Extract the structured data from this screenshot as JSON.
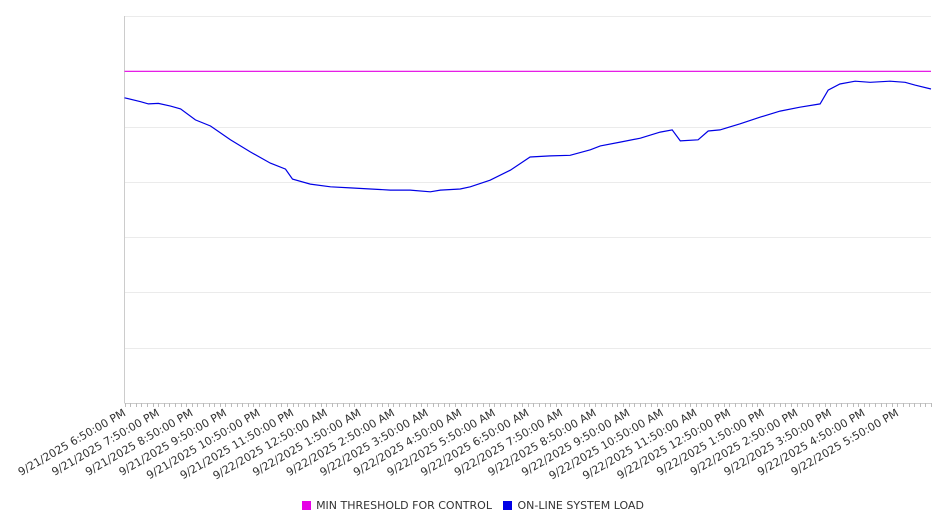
{
  "chart_data": {
    "type": "line",
    "title": "",
    "xlabel": "",
    "ylabel": "",
    "x_unit": "hours since 9/21/2025 6:50:00 PM",
    "xlim": [
      0,
      24
    ],
    "ylim": [
      0,
      7
    ],
    "y_gridlines": [
      0,
      1,
      2,
      3,
      4,
      5,
      6,
      7
    ],
    "y_tick_labels_shown": false,
    "grid": true,
    "legend_position": "bottom",
    "x_tick_labels": [
      "9/21/2025 6:50:00 PM",
      "9/21/2025 7:50:00 PM",
      "9/21/2025 8:50:00 PM",
      "9/21/2025 9:50:00 PM",
      "9/21/2025 10:50:00 PM",
      "9/21/2025 11:50:00 PM",
      "9/22/2025 12:50:00 AM",
      "9/22/2025 1:50:00 AM",
      "9/22/2025 2:50:00 AM",
      "9/22/2025 3:50:00 AM",
      "9/22/2025 4:50:00 AM",
      "9/22/2025 5:50:00 AM",
      "9/22/2025 6:50:00 AM",
      "9/22/2025 7:50:00 AM",
      "9/22/2025 8:50:00 AM",
      "9/22/2025 9:50:00 AM",
      "9/22/2025 10:50:00 AM",
      "9/22/2025 11:50:00 AM",
      "9/22/2025 12:50:00 PM",
      "9/22/2025 1:50:00 PM",
      "9/22/2025 2:50:00 PM",
      "9/22/2025 3:50:00 PM",
      "9/22/2025 4:50:00 PM",
      "9/22/2025 5:50:00 PM"
    ],
    "series": [
      {
        "name": "MIN THRESHOLD FOR CONTROL",
        "color": "#e600e6",
        "x": [
          0,
          24
        ],
        "values": [
          6.0,
          6.0
        ]
      },
      {
        "name": "ON-LINE SYSTEM LOAD",
        "color": "#0000e6",
        "x": [
          0,
          0.48,
          0.71,
          1.01,
          1.37,
          1.67,
          2.11,
          2.56,
          3.15,
          3.75,
          4.34,
          4.79,
          5.0,
          5.53,
          6.13,
          6.72,
          7.32,
          7.91,
          8.5,
          9.1,
          9.4,
          9.99,
          10.29,
          10.88,
          11.48,
          12.07,
          12.67,
          13.26,
          13.86,
          14.16,
          14.75,
          15.35,
          15.94,
          16.3,
          16.54,
          17.07,
          17.37,
          17.72,
          18.32,
          18.91,
          19.51,
          20.1,
          20.7,
          20.94,
          21.29,
          21.74,
          22.19,
          22.78,
          23.23,
          23.52,
          24
        ],
        "values": [
          5.52,
          5.45,
          5.41,
          5.42,
          5.37,
          5.32,
          5.12,
          5.01,
          4.76,
          4.54,
          4.34,
          4.23,
          4.05,
          3.96,
          3.91,
          3.89,
          3.87,
          3.85,
          3.85,
          3.82,
          3.85,
          3.87,
          3.91,
          4.03,
          4.21,
          4.45,
          4.47,
          4.48,
          4.58,
          4.65,
          4.72,
          4.79,
          4.9,
          4.94,
          4.74,
          4.76,
          4.92,
          4.94,
          5.05,
          5.17,
          5.28,
          5.35,
          5.41,
          5.66,
          5.77,
          5.82,
          5.8,
          5.82,
          5.8,
          5.75,
          5.68
        ]
      }
    ]
  }
}
